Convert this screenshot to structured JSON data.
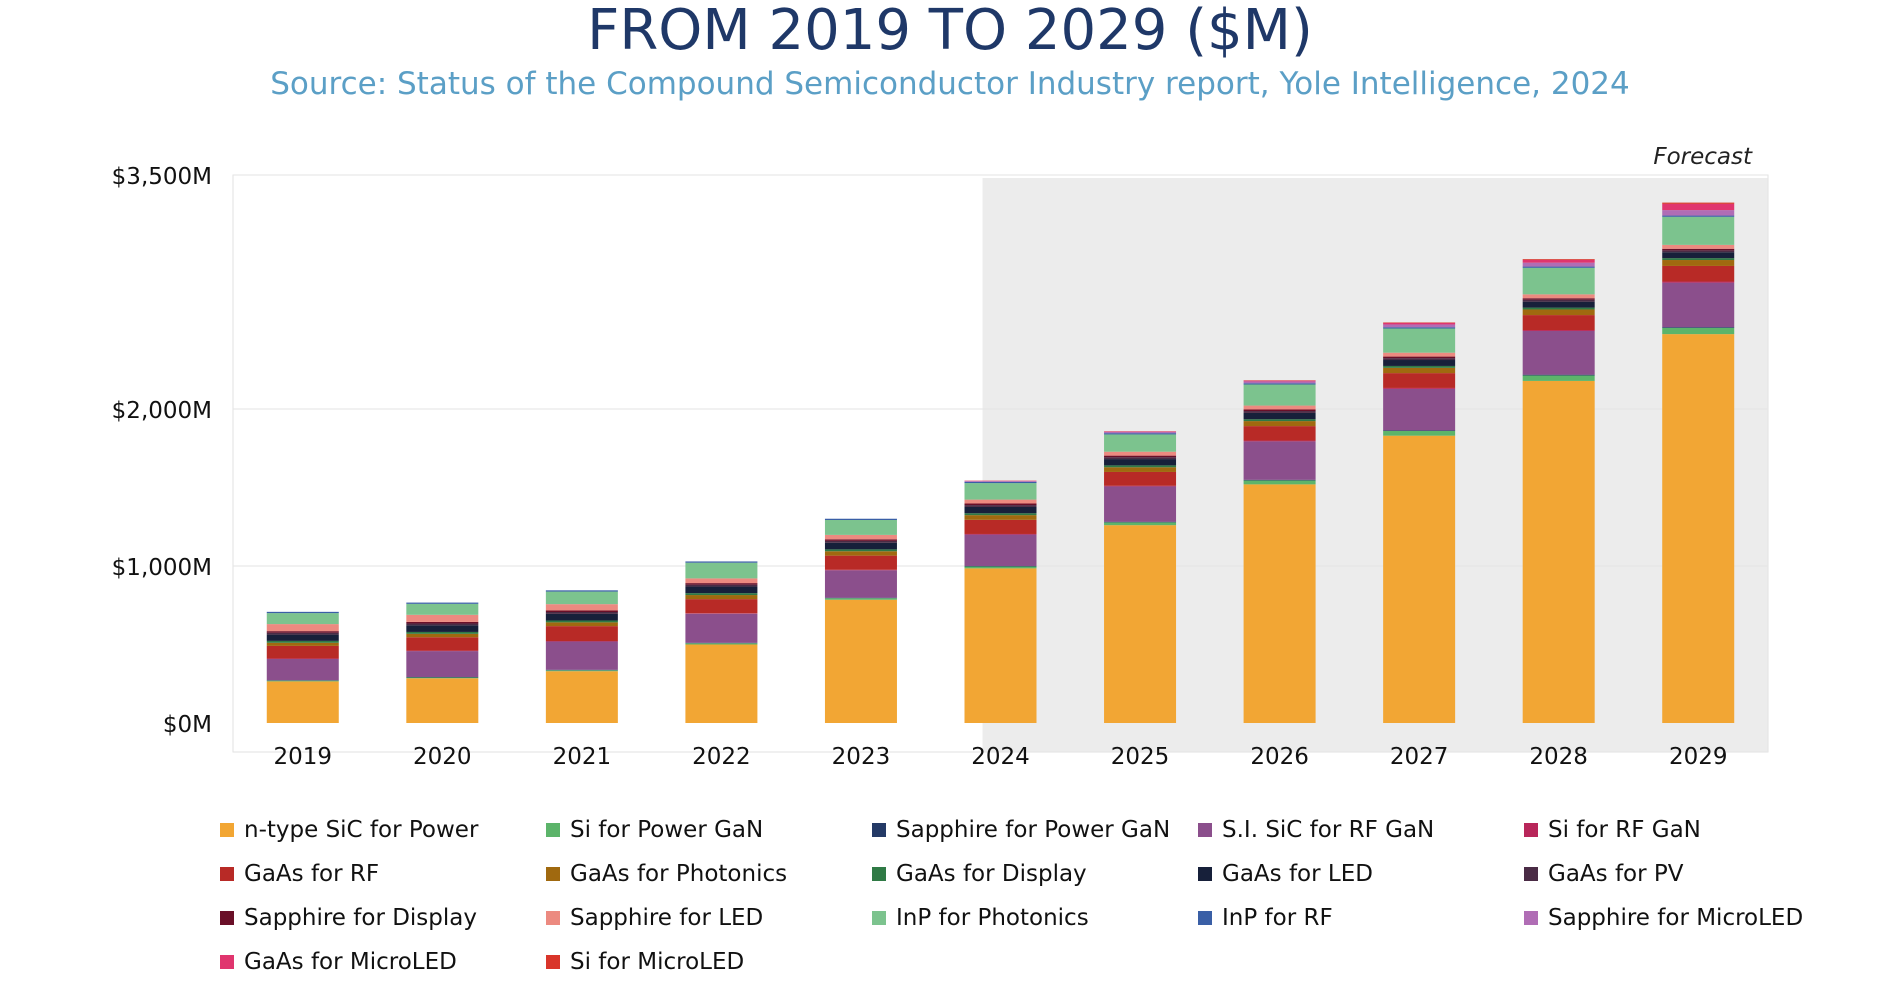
{
  "title": "FROM 2019 TO 2029 ($M)",
  "subtitle": "Source: Status of the Compound Semiconductor Industry report, Yole Intelligence, 2024",
  "chart_data": {
    "type": "bar",
    "stacked": true,
    "forecast_label": "Forecast",
    "forecast_start": "2024",
    "y_tick_labels": [
      "$0M",
      "$1,000M",
      "$2,000M",
      "$3,500M"
    ],
    "y_tick_values": [
      0,
      1000,
      2000,
      3500
    ],
    "ylim": [
      0,
      3500
    ],
    "grid": true,
    "legend_position": "bottom",
    "categories": [
      "2019",
      "2020",
      "2021",
      "2022",
      "2023",
      "2024",
      "2025",
      "2026",
      "2027",
      "2028",
      "2029"
    ],
    "series": [
      {
        "name": "n-type SiC for Power",
        "color": "#f2a634",
        "values": [
          265,
          285,
          330,
          500,
          785,
          985,
          1260,
          1520,
          1830,
          2180,
          2480
        ]
      },
      {
        "name": "Si for Power GaN",
        "color": "#5cb46a",
        "values": [
          5,
          5,
          6,
          8,
          10,
          12,
          18,
          25,
          30,
          35,
          40
        ]
      },
      {
        "name": "Sapphire for Power GaN",
        "color": "#243a66",
        "values": [
          3,
          3,
          3,
          3,
          3,
          3,
          4,
          4,
          4,
          5,
          5
        ]
      },
      {
        "name": "S.I. SiC for RF GaN",
        "color": "#8b4f8c",
        "values": [
          135,
          165,
          180,
          185,
          175,
          200,
          225,
          245,
          265,
          280,
          285
        ]
      },
      {
        "name": "Si for RF GaN",
        "color": "#b8265a",
        "values": [
          3,
          3,
          3,
          3,
          3,
          4,
          4,
          5,
          6,
          6,
          7
        ]
      },
      {
        "name": "GaAs for RF",
        "color": "#b82a26",
        "values": [
          80,
          85,
          95,
          90,
          90,
          90,
          88,
          92,
          95,
          96,
          100
        ]
      },
      {
        "name": "GaAs for Photonics",
        "color": "#a0690f",
        "values": [
          20,
          22,
          24,
          26,
          28,
          30,
          30,
          32,
          34,
          36,
          38
        ]
      },
      {
        "name": "GaAs for Display",
        "color": "#2f7a45",
        "values": [
          12,
          12,
          12,
          12,
          12,
          12,
          12,
          12,
          12,
          12,
          12
        ]
      },
      {
        "name": "GaAs for LED",
        "color": "#17203a",
        "values": [
          40,
          42,
          42,
          42,
          42,
          40,
          40,
          40,
          38,
          38,
          38
        ]
      },
      {
        "name": "GaAs for PV",
        "color": "#4a2b45",
        "values": [
          12,
          12,
          12,
          12,
          12,
          12,
          12,
          12,
          12,
          12,
          12
        ]
      },
      {
        "name": "Sapphire for Display",
        "color": "#6a0f28",
        "values": [
          10,
          10,
          10,
          10,
          10,
          10,
          10,
          10,
          10,
          10,
          10
        ]
      },
      {
        "name": "Sapphire for LED",
        "color": "#ec8a80",
        "values": [
          45,
          45,
          40,
          30,
          28,
          25,
          25,
          25,
          25,
          25,
          25
        ]
      },
      {
        "name": "InP for Photonics",
        "color": "#7cc38e",
        "values": [
          70,
          70,
          80,
          100,
          95,
          105,
          110,
          135,
          155,
          170,
          180
        ]
      },
      {
        "name": "InP for RF",
        "color": "#3a5fa6",
        "values": [
          8,
          8,
          8,
          8,
          8,
          8,
          8,
          8,
          8,
          8,
          8
        ]
      },
      {
        "name": "Sapphire for MicroLED",
        "color": "#b06db5",
        "values": [
          0,
          0,
          0,
          0,
          0,
          5,
          8,
          12,
          18,
          25,
          35
        ]
      },
      {
        "name": "GaAs for MicroLED",
        "color": "#e0356e",
        "values": [
          0,
          0,
          0,
          0,
          0,
          2,
          3,
          5,
          10,
          18,
          40
        ]
      },
      {
        "name": "Si for MicroLED",
        "color": "#d9352a",
        "values": [
          0,
          0,
          0,
          0,
          0,
          1,
          1,
          2,
          3,
          5,
          8
        ]
      }
    ]
  }
}
